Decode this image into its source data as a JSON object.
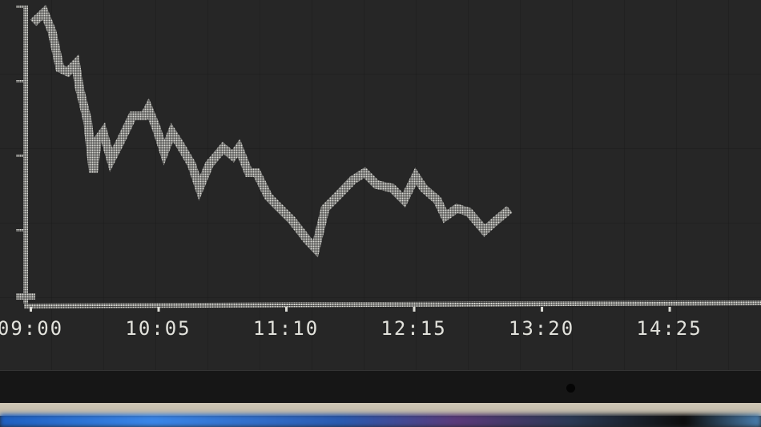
{
  "colors": {
    "background": "#262626",
    "led": "#dcdcd6",
    "bezel": "#161616"
  },
  "chart_data": {
    "type": "line",
    "title": "",
    "xlabel": "",
    "ylabel": "",
    "x_ticks": [
      "09:00",
      "10:05",
      "11:10",
      "12:15",
      "13:20",
      "14:25"
    ],
    "y_ticks_labeled": false,
    "ylim": [
      0,
      4
    ],
    "grid": true,
    "legend": "none",
    "series": [
      {
        "x": [
          "09:03",
          "09:07",
          "09:11",
          "09:15",
          "09:19",
          "09:23",
          "09:25",
          "09:29",
          "09:32",
          "09:34",
          "09:37",
          "09:41",
          "09:46",
          "09:52",
          "09:58",
          "10:00",
          "10:04",
          "10:08",
          "10:12",
          "10:16",
          "10:22",
          "10:26",
          "10:31",
          "10:38",
          "10:43",
          "10:46",
          "10:51",
          "10:55",
          "11:01",
          "11:05",
          "11:13",
          "11:21",
          "11:25",
          "11:30",
          "11:36",
          "11:44",
          "11:50",
          "11:56",
          "12:04",
          "12:10",
          "12:16",
          "12:20",
          "12:27",
          "12:31",
          "12:37",
          "12:43",
          "12:51",
          "12:57",
          "13:02"
        ],
        "y": [
          3.82,
          3.92,
          3.66,
          3.17,
          3.12,
          3.23,
          2.9,
          2.47,
          1.77,
          2.2,
          2.31,
          1.94,
          2.2,
          2.53,
          2.53,
          2.63,
          2.37,
          2.04,
          2.31,
          2.15,
          1.88,
          1.56,
          1.88,
          2.1,
          1.99,
          2.1,
          1.77,
          1.77,
          1.45,
          1.34,
          1.13,
          0.86,
          0.75,
          1.29,
          1.45,
          1.67,
          1.77,
          1.61,
          1.56,
          1.4,
          1.72,
          1.56,
          1.4,
          1.18,
          1.29,
          1.24,
          0.99,
          1.13,
          1.24
        ]
      }
    ]
  }
}
